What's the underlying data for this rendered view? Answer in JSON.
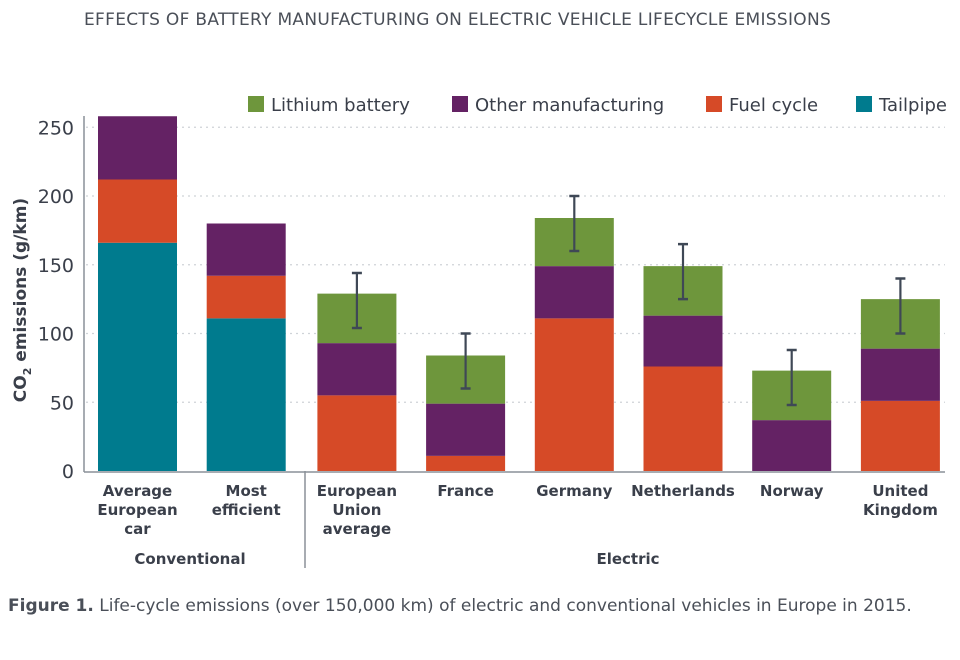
{
  "page_title": "EFFECTS OF BATTERY MANUFACTURING ON ELECTRIC VEHICLE LIFECYCLE EMISSIONS",
  "caption": {
    "label": "Figure 1.",
    "text": " Life-cycle emissions (over 150,000 km) of electric and conventional vehicles in Europe in 2015."
  },
  "chart_data": {
    "type": "bar",
    "stacked": true,
    "title": "EFFECTS OF BATTERY MANUFACTURING ON ELECTRIC VEHICLE LIFECYCLE EMISSIONS",
    "xlabel": "",
    "ylabel": "CO2 emissions (g/km)",
    "ylabel_main": "CO",
    "ylabel_sub": "2",
    "ylabel_rest": " emissions (g/km)",
    "ylim": [
      0,
      260
    ],
    "yticks": [
      0,
      50,
      100,
      150,
      200,
      250
    ],
    "grid": true,
    "legend_position": "top-right",
    "categories": [
      [
        "Average",
        "European",
        "car"
      ],
      [
        "Most",
        "efficient"
      ],
      [
        "European",
        "Union",
        "average"
      ],
      [
        "France"
      ],
      [
        "Germany"
      ],
      [
        "Netherlands"
      ],
      [
        "Norway"
      ],
      [
        "United",
        "Kingdom"
      ]
    ],
    "groups": [
      {
        "label": "Conventional",
        "start": 0,
        "end": 1
      },
      {
        "label": "Electric",
        "start": 2,
        "end": 7
      }
    ],
    "series": [
      {
        "name": "Tailpipe",
        "color": "#007b8e",
        "values": [
          166,
          111,
          0,
          0,
          0,
          0,
          0,
          0
        ]
      },
      {
        "name": "Fuel cycle",
        "color": "#d64a27",
        "values": [
          46,
          31,
          55,
          11,
          111,
          76,
          0,
          51
        ]
      },
      {
        "name": "Other manufacturing",
        "color": "#642264",
        "values": [
          46,
          38,
          38,
          38,
          38,
          37,
          37,
          38
        ]
      },
      {
        "name": "Lithium battery",
        "color": "#6e963c",
        "values": [
          0,
          0,
          36,
          35,
          35,
          36,
          36,
          36
        ]
      }
    ],
    "legend_order": [
      "Lithium battery",
      "Other manufacturing",
      "Fuel cycle",
      "Tailpipe"
    ],
    "error_bars": [
      null,
      null,
      [
        104,
        144
      ],
      [
        60,
        100
      ],
      [
        160,
        200
      ],
      [
        125,
        165
      ],
      [
        48,
        88
      ],
      [
        100,
        140
      ]
    ]
  }
}
